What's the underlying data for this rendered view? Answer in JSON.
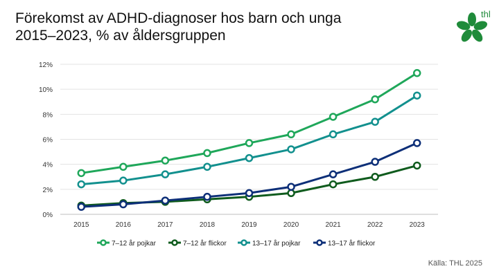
{
  "title_line1": "Förekomst av ADHD-diagnoser hos barn och unga",
  "title_line2": "2015–2023, % av åldersgruppen",
  "logo_text": "thl",
  "source": "Källa: THL 2025",
  "colors": {
    "pojkar_7_12": "#1fa75a",
    "flickor_7_12": "#0f5b1d",
    "pojkar_13_17": "#12908e",
    "flickor_13_17": "#0d2f78",
    "logo_green": "#1f8b3a"
  },
  "chart_data": {
    "type": "line",
    "title": "Förekomst av ADHD-diagnoser hos barn och unga 2015–2023, % av åldersgruppen",
    "x": [
      "2015",
      "2016",
      "2017",
      "2018",
      "2019",
      "2020",
      "2021",
      "2022",
      "2023"
    ],
    "y_ticks": [
      "0%",
      "2%",
      "4%",
      "6%",
      "8%",
      "10%",
      "12%"
    ],
    "ylim": [
      0,
      12
    ],
    "grid": true,
    "legend_position": "bottom",
    "series": [
      {
        "name": "7–12 år pojkar",
        "color": "#1fa75a",
        "values": [
          3.3,
          3.8,
          4.3,
          4.9,
          5.7,
          6.4,
          7.8,
          9.2,
          11.3
        ]
      },
      {
        "name": "7–12 år flickor",
        "color": "#0f5b1d",
        "values": [
          0.7,
          0.9,
          1.0,
          1.2,
          1.4,
          1.7,
          2.4,
          3.0,
          3.9
        ]
      },
      {
        "name": "13–17 år pojkar",
        "color": "#12908e",
        "values": [
          2.4,
          2.7,
          3.2,
          3.8,
          4.5,
          5.2,
          6.4,
          7.4,
          9.5
        ]
      },
      {
        "name": "13–17 år flickor",
        "color": "#0d2f78",
        "values": [
          0.6,
          0.8,
          1.1,
          1.4,
          1.7,
          2.2,
          3.2,
          4.2,
          5.7
        ]
      }
    ]
  }
}
